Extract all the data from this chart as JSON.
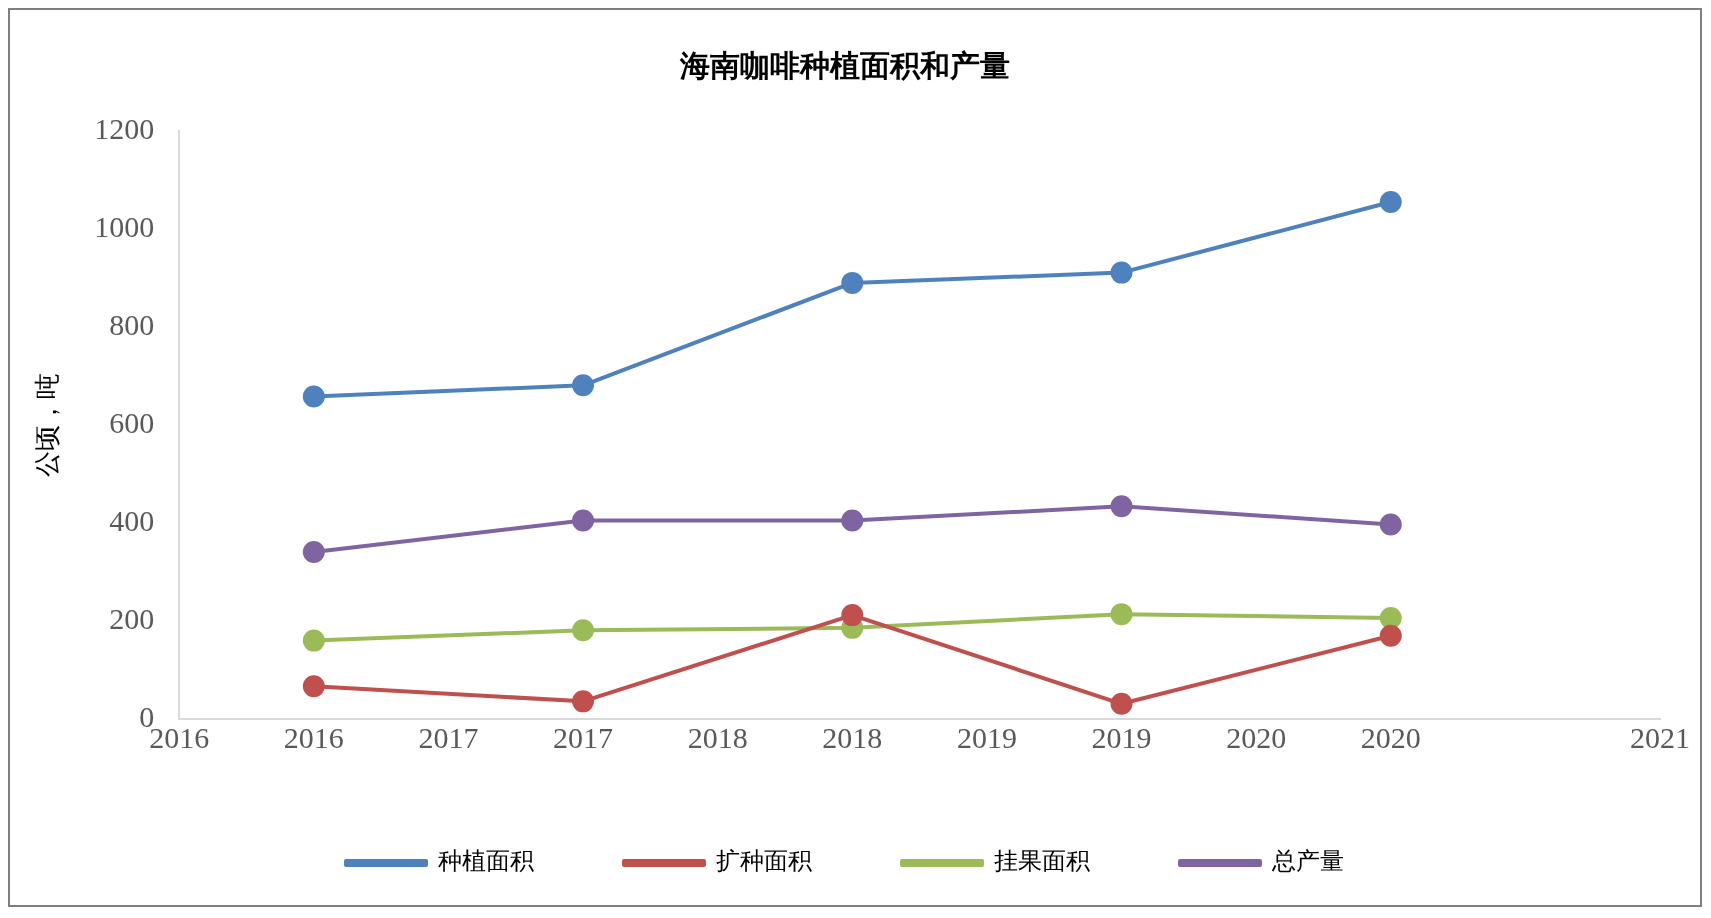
{
  "chart_data": {
    "type": "line",
    "title": "海南咖啡种植面积和产量",
    "ylabel": "公顷，吨",
    "x": [
      2016,
      2017,
      2018,
      2019,
      2020
    ],
    "series": [
      {
        "name": "种植面积",
        "color": "#4f81bd",
        "values": [
          658,
          681,
          890,
          911,
          1055
        ]
      },
      {
        "name": "扩种面积",
        "color": "#c0504d",
        "values": [
          67,
          36,
          212,
          31,
          170
        ]
      },
      {
        "name": "挂果面积",
        "color": "#9bbb59",
        "values": [
          160,
          181,
          186,
          214,
          206
        ]
      },
      {
        "name": "总产量",
        "color": "#8064a2",
        "values": [
          341,
          405,
          405,
          434,
          397
        ]
      }
    ],
    "xlim": [
      2015.5,
      2021
    ],
    "xticks": [
      {
        "value": 2015.5,
        "label": "2016"
      },
      2016,
      {
        "value": 2016.5,
        "label": "2017"
      },
      2017,
      {
        "value": 2017.5,
        "label": "2018"
      },
      2018,
      {
        "value": 2018.5,
        "label": "2019"
      },
      2019,
      {
        "value": 2019.5,
        "label": "2020"
      },
      2020,
      2021
    ],
    "ylim": [
      0,
      1200
    ],
    "yticks": [
      0,
      200,
      400,
      600,
      800,
      1000,
      1200
    ],
    "grid": false,
    "legend": "bottom",
    "marker": "circle",
    "line_style": "solid"
  }
}
